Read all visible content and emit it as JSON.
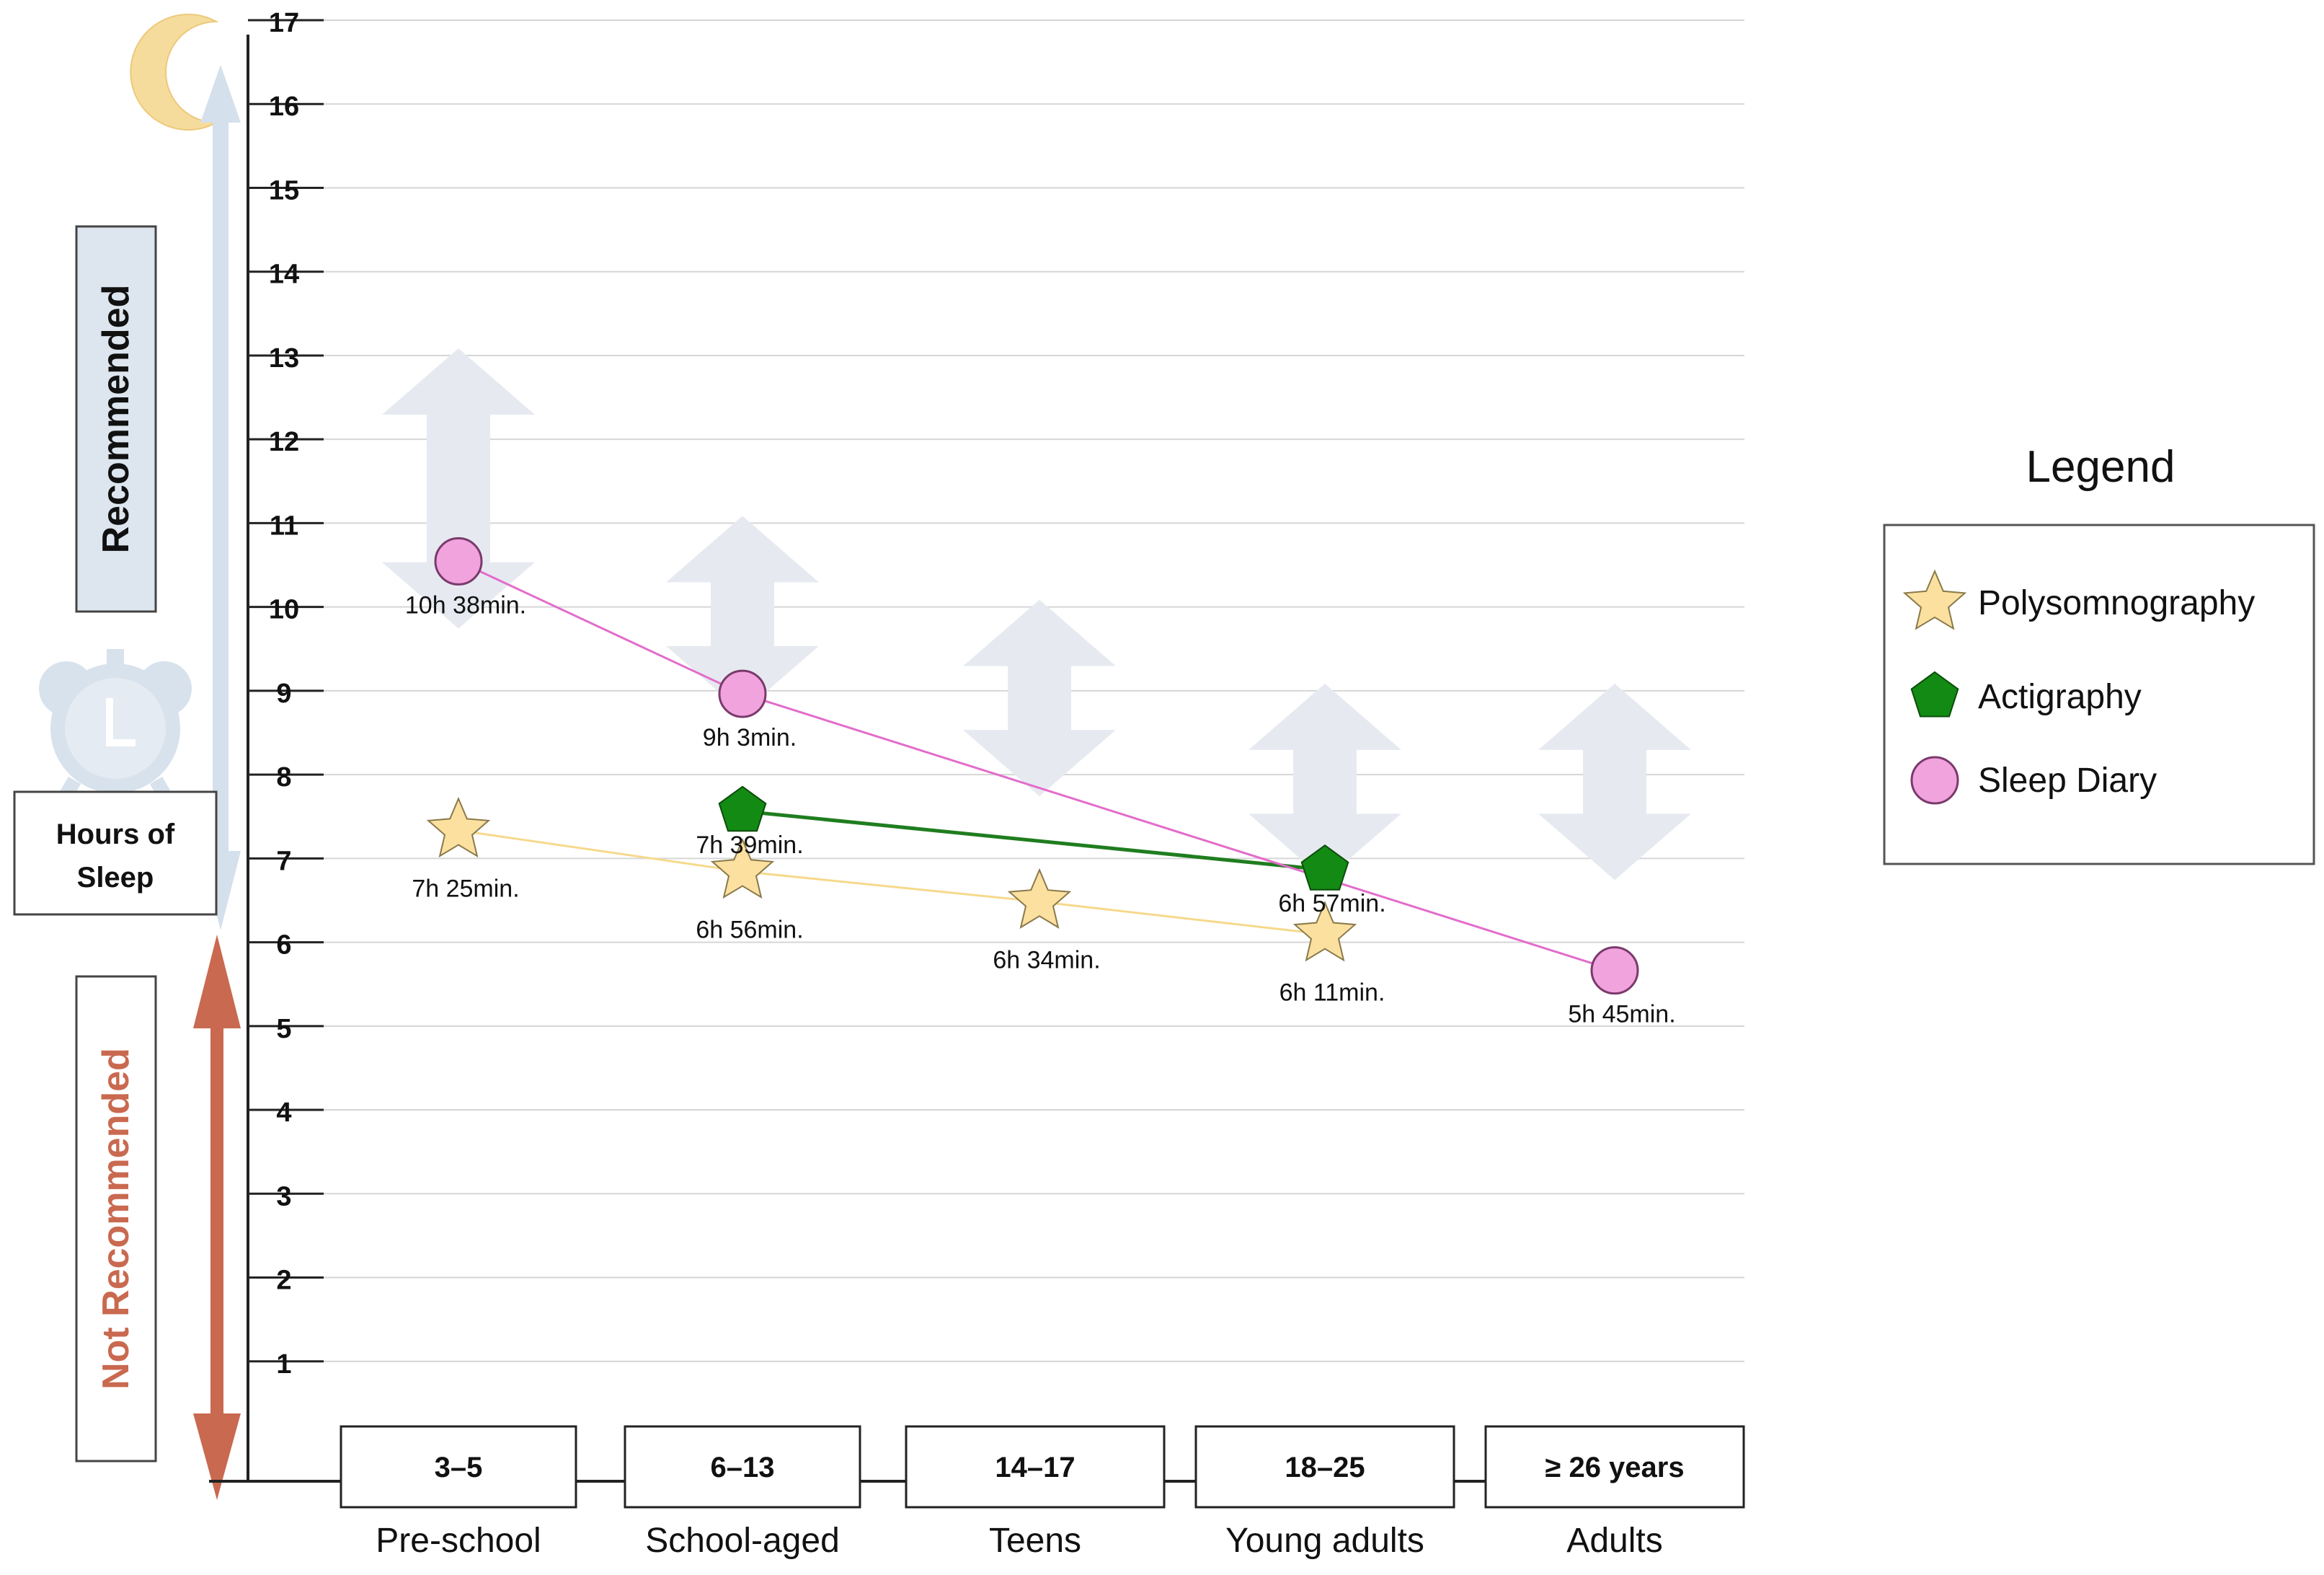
{
  "chart_data": {
    "type": "line",
    "title": "",
    "ylabel": "Hours of Sleep",
    "ylim": [
      0,
      17
    ],
    "yticks": [
      1,
      2,
      3,
      4,
      5,
      6,
      7,
      8,
      9,
      10,
      11,
      12,
      13,
      14,
      15,
      16,
      17
    ],
    "categories": [
      {
        "age": "3–5",
        "group": "Pre-school"
      },
      {
        "age": "6–13",
        "group": "School-aged"
      },
      {
        "age": "14–17",
        "group": "Teens"
      },
      {
        "age": "18–25",
        "group": "Young adults"
      },
      {
        "age": "≥ 26 years",
        "group": "Adults"
      }
    ],
    "recommended_ranges": [
      {
        "category": 0,
        "min": 10,
        "max": 13
      },
      {
        "category": 1,
        "min": 9,
        "max": 11
      },
      {
        "category": 2,
        "min": 8,
        "max": 10
      },
      {
        "category": 3,
        "min": 7,
        "max": 9
      },
      {
        "category": 4,
        "min": 7,
        "max": 9
      }
    ],
    "series": [
      {
        "name": "Polysomnography",
        "marker": "star",
        "color": "#fbe0a0",
        "line_color": "#f6d98c",
        "points": [
          {
            "category": 0,
            "value": 7.42,
            "label": "7h 25min."
          },
          {
            "category": 1,
            "value": 6.93,
            "label": "6h 56min."
          },
          {
            "category": 2,
            "value": 6.57,
            "label": "6h 34min."
          },
          {
            "category": 3,
            "value": 6.18,
            "label": "6h 11min."
          }
        ]
      },
      {
        "name": "Actigraphy",
        "marker": "pentagon",
        "color": "#138a13",
        "line_color": "#1f7d1f",
        "points": [
          {
            "category": 1,
            "value": 7.65,
            "label": "7h 39min."
          },
          {
            "category": 3,
            "value": 6.95,
            "label": "6h 57min."
          }
        ]
      },
      {
        "name": "Sleep Diary",
        "marker": "circle",
        "color": "#f1a3dd",
        "line_color": "#e36ccb",
        "points": [
          {
            "category": 0,
            "value": 10.63,
            "label": "10h 38min."
          },
          {
            "category": 1,
            "value": 9.05,
            "label": "9h 3min."
          },
          {
            "category": 4,
            "value": 5.75,
            "label": "5h 45min."
          }
        ]
      }
    ],
    "side_labels": {
      "recommended": "Recommended",
      "not_recommended": "Not Recommended",
      "hours": [
        "Hours of",
        "Sleep"
      ]
    },
    "legend": {
      "title": "Legend",
      "position": "right"
    }
  },
  "colors": {
    "grid": "#d6d6d6",
    "axis": "#222222",
    "range_arrow": "#e6eaf0",
    "recommended_arrow": "#d4e0ec",
    "not_recommended_arrow": "#c9694f",
    "not_recommended_text": "#c9694f",
    "recommended_box": "#dde6ef",
    "moon": "#f6dc9c",
    "clock": "#d8e2ec"
  }
}
